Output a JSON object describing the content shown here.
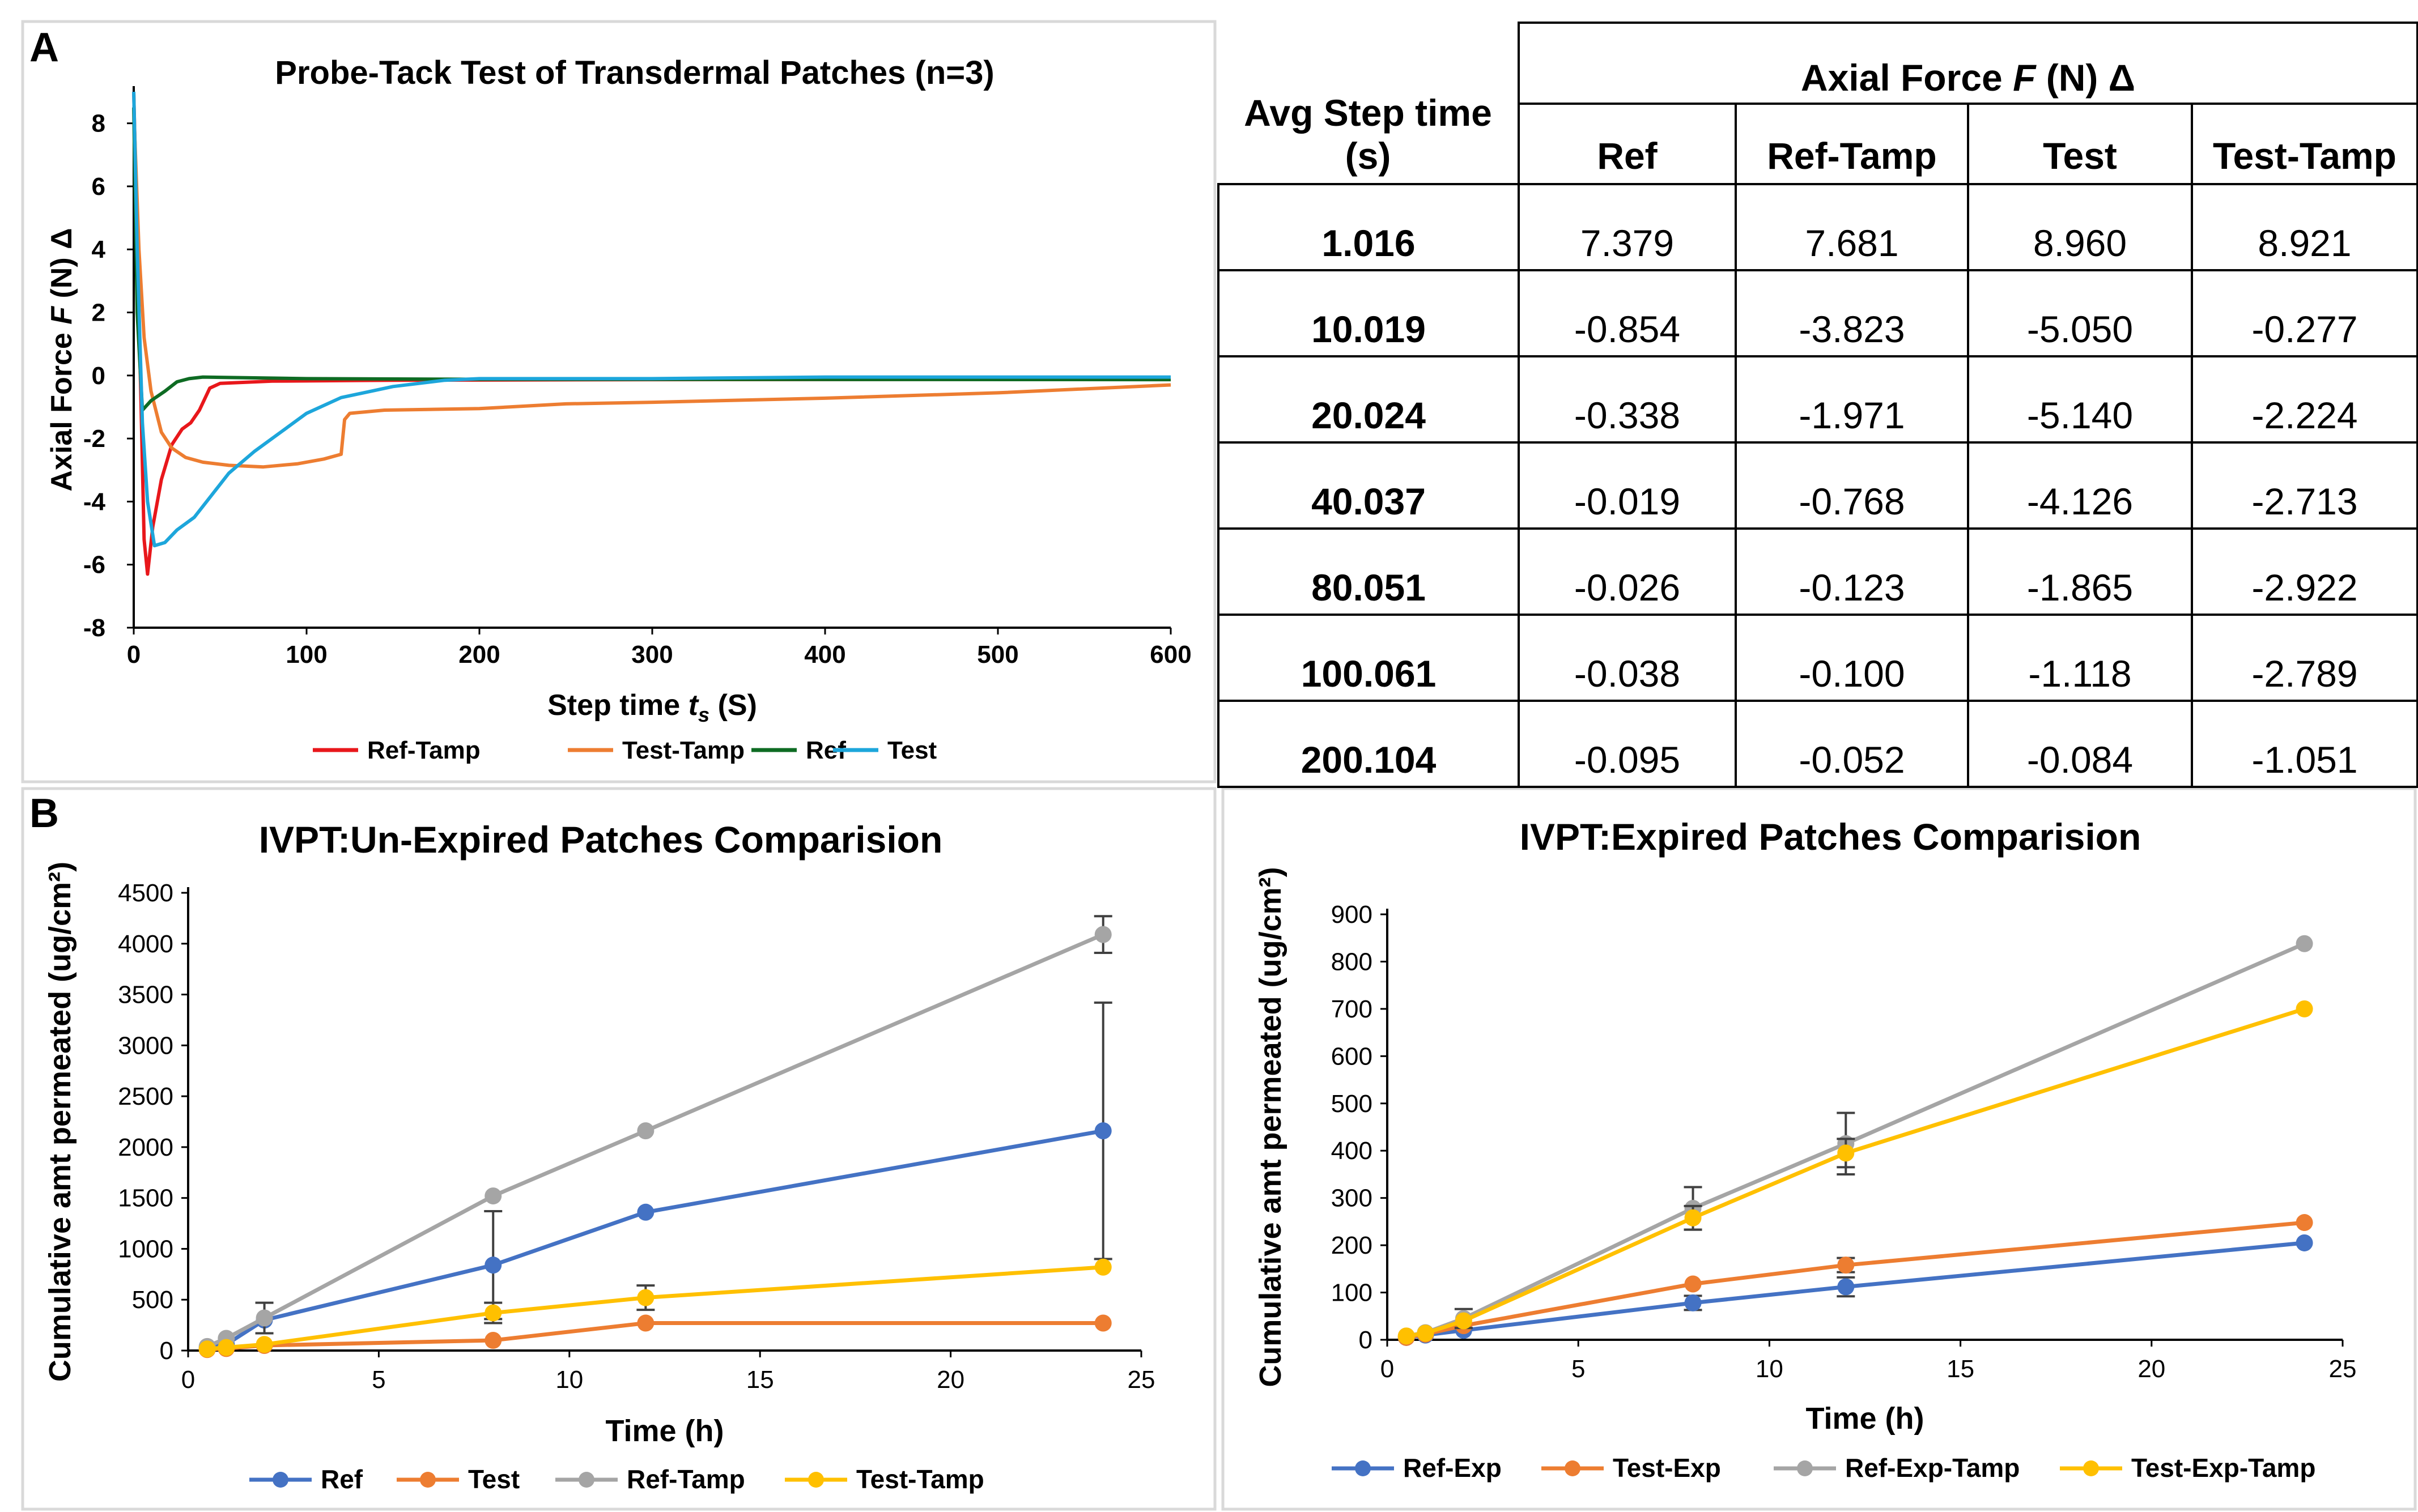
{
  "panels": {
    "a_label": "A",
    "b_label": "B"
  },
  "colors": {
    "red": "#E8171B",
    "orange": "#ED7D31",
    "green": "#0E6B23",
    "cyan": "#1DA6DB",
    "blue": "#4472C4",
    "gray": "#A5A5A5",
    "yellow": "#FFC000"
  },
  "chart_data": [
    {
      "id": "probe_tack",
      "type": "line",
      "title": "Probe-Tack Test of Transdermal Patches (n=3)",
      "xlabel": "Step time t_s (S)",
      "ylabel": "Axial Force F (N) Δ",
      "xlim": [
        0,
        600
      ],
      "ylim": [
        -8,
        9
      ],
      "xticks": [
        0,
        100,
        200,
        300,
        400,
        500,
        600
      ],
      "yticks": [
        8,
        6,
        4,
        2,
        0,
        -2,
        -4,
        -6,
        -8
      ],
      "grid": false,
      "legend_position": "bottom",
      "series": [
        {
          "name": "Ref-Tamp",
          "color": "#E8171B",
          "points": [
            [
              0,
              9
            ],
            [
              3,
              2
            ],
            [
              6,
              -5.2
            ],
            [
              8,
              -6.3
            ],
            [
              11,
              -4.8
            ],
            [
              16,
              -3.3
            ],
            [
              22,
              -2.2
            ],
            [
              28,
              -1.7
            ],
            [
              33,
              -1.5
            ],
            [
              38,
              -1.1
            ],
            [
              44,
              -0.4
            ],
            [
              50,
              -0.25
            ],
            [
              80,
              -0.18
            ],
            [
              150,
              -0.15
            ],
            [
              300,
              -0.13
            ],
            [
              600,
              -0.12
            ]
          ]
        },
        {
          "name": "Test-Tamp",
          "color": "#ED7D31",
          "points": [
            [
              0,
              8.5
            ],
            [
              3,
              4
            ],
            [
              6,
              1.2
            ],
            [
              10,
              -0.5
            ],
            [
              16,
              -1.8
            ],
            [
              22,
              -2.3
            ],
            [
              30,
              -2.6
            ],
            [
              40,
              -2.75
            ],
            [
              55,
              -2.85
            ],
            [
              75,
              -2.9
            ],
            [
              95,
              -2.8
            ],
            [
              110,
              -2.65
            ],
            [
              120,
              -2.5
            ],
            [
              122,
              -1.4
            ],
            [
              125,
              -1.2
            ],
            [
              145,
              -1.1
            ],
            [
              200,
              -1.05
            ],
            [
              250,
              -0.9
            ],
            [
              300,
              -0.85
            ],
            [
              400,
              -0.72
            ],
            [
              500,
              -0.55
            ],
            [
              600,
              -0.3
            ]
          ]
        },
        {
          "name": "Ref",
          "color": "#0E6B23",
          "points": [
            [
              0,
              8.5
            ],
            [
              2,
              2
            ],
            [
              5,
              -1.1
            ],
            [
              10,
              -0.8
            ],
            [
              18,
              -0.5
            ],
            [
              25,
              -0.2
            ],
            [
              32,
              -0.1
            ],
            [
              40,
              -0.05
            ],
            [
              100,
              -0.1
            ],
            [
              200,
              -0.12
            ],
            [
              600,
              -0.13
            ]
          ]
        },
        {
          "name": "Test",
          "color": "#1DA6DB",
          "points": [
            [
              0,
              9
            ],
            [
              2,
              4
            ],
            [
              5,
              -1.5
            ],
            [
              8,
              -4
            ],
            [
              12,
              -5.4
            ],
            [
              18,
              -5.3
            ],
            [
              25,
              -4.9
            ],
            [
              35,
              -4.5
            ],
            [
              45,
              -3.8
            ],
            [
              55,
              -3.1
            ],
            [
              70,
              -2.4
            ],
            [
              85,
              -1.8
            ],
            [
              100,
              -1.2
            ],
            [
              120,
              -0.7
            ],
            [
              150,
              -0.35
            ],
            [
              180,
              -0.15
            ],
            [
              200,
              -0.1
            ],
            [
              300,
              -0.1
            ],
            [
              400,
              -0.05
            ],
            [
              600,
              -0.05
            ]
          ]
        }
      ]
    },
    {
      "id": "ivpt_unexpired",
      "type": "line",
      "title": "IVPT:Un-Expired Patches Comparision",
      "xlabel": "Time (h)",
      "ylabel": "Cumulative amt permeated (ug/cm²)",
      "xlim": [
        0,
        25
      ],
      "ylim": [
        0,
        4500
      ],
      "xticks": [
        0,
        5,
        10,
        15,
        20,
        25
      ],
      "yticks": [
        0,
        500,
        1000,
        1500,
        2000,
        2500,
        3000,
        3500,
        4000,
        4500
      ],
      "grid": false,
      "legend_position": "bottom",
      "x": [
        0.5,
        1,
        2,
        8,
        12,
        24
      ],
      "series": [
        {
          "name": "Ref",
          "color": "#4472C4",
          "values": [
            20,
            60,
            300,
            840,
            1360,
            2160
          ],
          "errors": [
            0,
            0,
            0,
            530,
            0,
            1260
          ]
        },
        {
          "name": "Test",
          "color": "#ED7D31",
          "values": [
            10,
            20,
            50,
            100,
            270,
            270
          ],
          "errors": [
            0,
            0,
            0,
            0,
            0,
            0
          ]
        },
        {
          "name": "Ref-Tamp",
          "color": "#A5A5A5",
          "values": [
            40,
            120,
            320,
            1520,
            2160,
            4090
          ],
          "errors": [
            0,
            0,
            150,
            0,
            0,
            180
          ]
        },
        {
          "name": "Test-Tamp",
          "color": "#FFC000",
          "values": [
            15,
            30,
            60,
            370,
            520,
            820
          ],
          "errors": [
            0,
            0,
            0,
            100,
            120,
            0
          ]
        }
      ]
    },
    {
      "id": "ivpt_expired",
      "type": "line",
      "title": "IVPT:Expired Patches Comparision",
      "xlabel": "Time (h)",
      "ylabel": "Cumulative amt permeated (ug/cm²)",
      "xlim": [
        0,
        25
      ],
      "ylim": [
        0,
        900
      ],
      "xticks": [
        0,
        5,
        10,
        15,
        20,
        25
      ],
      "yticks": [
        0,
        100,
        200,
        300,
        400,
        500,
        600,
        700,
        800,
        900
      ],
      "grid": false,
      "legend_position": "bottom",
      "x": [
        0.5,
        1,
        2,
        8,
        12,
        24
      ],
      "series": [
        {
          "name": "Ref-Exp",
          "color": "#4472C4",
          "values": [
            5,
            10,
            20,
            78,
            112,
            205
          ],
          "errors": [
            0,
            0,
            0,
            15,
            20,
            0
          ]
        },
        {
          "name": "Test-Exp",
          "color": "#ED7D31",
          "values": [
            5,
            12,
            30,
            118,
            158,
            248
          ],
          "errors": [
            0,
            0,
            0,
            0,
            15,
            0
          ]
        },
        {
          "name": "Ref-Exp-Tamp",
          "color": "#A5A5A5",
          "values": [
            8,
            15,
            45,
            278,
            415,
            838
          ],
          "errors": [
            0,
            0,
            20,
            45,
            65,
            0
          ]
        },
        {
          "name": "Test-Exp-Tamp",
          "color": "#FFC000",
          "values": [
            8,
            14,
            40,
            258,
            395,
            700
          ],
          "errors": [
            0,
            0,
            0,
            25,
            30,
            0
          ]
        }
      ]
    }
  ],
  "force_table": {
    "corner_header": "Avg Step time (s)",
    "group_header": "Axial Force F (N) Δ",
    "columns": [
      "Ref",
      "Ref-Tamp",
      "Test",
      "Test-Tamp"
    ],
    "rows": [
      {
        "time": "1.016",
        "values": [
          "7.379",
          "7.681",
          "8.960",
          "8.921"
        ]
      },
      {
        "time": "10.019",
        "values": [
          "-0.854",
          "-3.823",
          "-5.050",
          "-0.277"
        ]
      },
      {
        "time": "20.024",
        "values": [
          "-0.338",
          "-1.971",
          "-5.140",
          "-2.224"
        ]
      },
      {
        "time": "40.037",
        "values": [
          "-0.019",
          "-0.768",
          "-4.126",
          "-2.713"
        ]
      },
      {
        "time": "80.051",
        "values": [
          "-0.026",
          "-0.123",
          "-1.865",
          "-2.922"
        ]
      },
      {
        "time": "100.061",
        "values": [
          "-0.038",
          "-0.100",
          "-1.118",
          "-2.789"
        ]
      },
      {
        "time": "200.104",
        "values": [
          "-0.095",
          "-0.052",
          "-0.084",
          "-1.051"
        ]
      }
    ]
  }
}
